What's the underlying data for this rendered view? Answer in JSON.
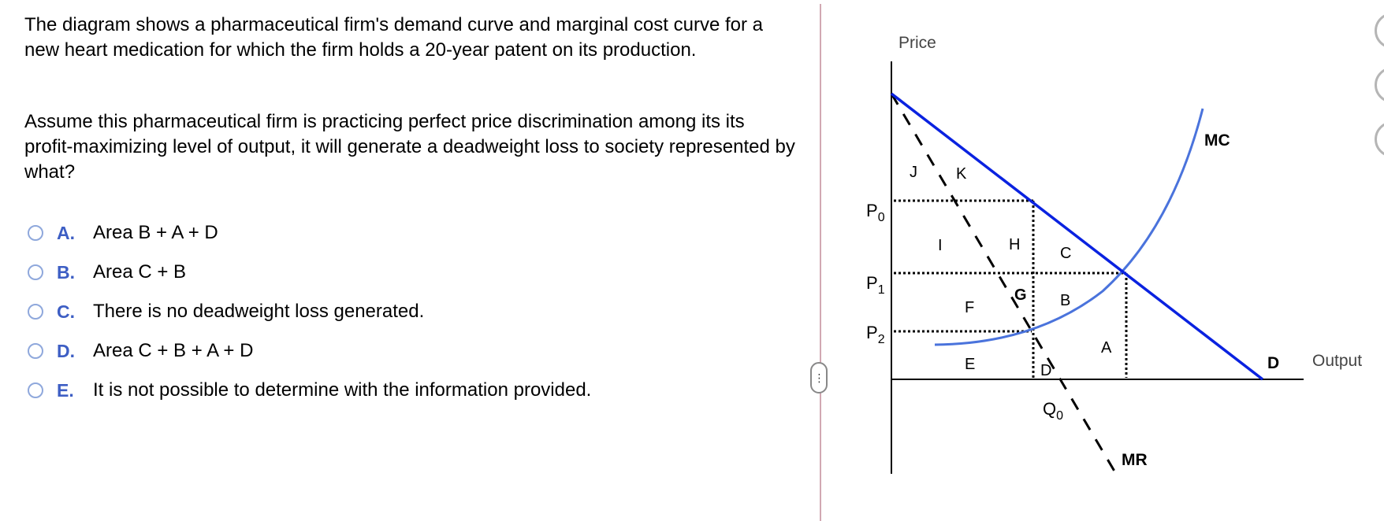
{
  "question": {
    "para1": "The diagram shows a pharmaceutical firm's demand curve and marginal cost curve for a new heart medication for which the firm holds a 20-year patent on its production.",
    "para2": "Assume this pharmaceutical firm is practicing perfect price discrimination among its its profit-maximizing level of output, it will generate a deadweight loss to society represented by what?"
  },
  "options": [
    {
      "letter": "A.",
      "text": "Area B + A + D"
    },
    {
      "letter": "B.",
      "text": "Area C + B"
    },
    {
      "letter": "C.",
      "text": "There is no deadweight loss generated."
    },
    {
      "letter": "D.",
      "text": "Area C + B + A + D"
    },
    {
      "letter": "E.",
      "text": "It is not possible to determine with the information provided."
    }
  ],
  "handle_glyph": "⋮",
  "diagram": {
    "y_axis_label": "Price",
    "x_axis_label": "Output",
    "curve_labels": {
      "mc": "MC",
      "mr": "MR",
      "demand": "D"
    },
    "price_labels": {
      "p0": "P",
      "p0_sub": "0",
      "p1": "P",
      "p1_sub": "1",
      "p2": "P",
      "p2_sub": "2"
    },
    "quantity_label": {
      "q": "Q",
      "q_sub": "0"
    },
    "area_labels": {
      "j": "J",
      "k": "K",
      "i": "I",
      "h": "H",
      "c": "C",
      "g": "G",
      "b": "B",
      "f": "F",
      "a": "A",
      "e": "E",
      "d": "D"
    },
    "colors": {
      "demand": "#0a22e0",
      "mc": "#4a73dc",
      "mr": "#000000",
      "axes": "#000000"
    }
  }
}
